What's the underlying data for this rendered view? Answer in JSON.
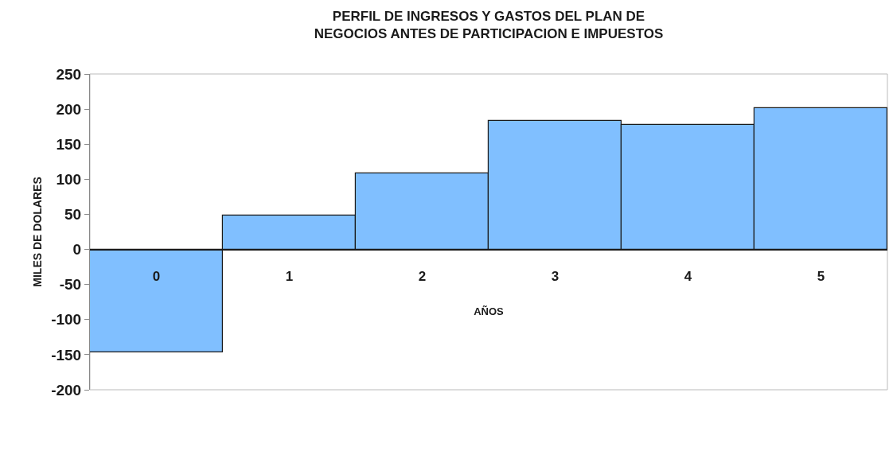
{
  "chart_data": {
    "type": "bar",
    "title": "PERFIL DE INGRESOS Y GASTOS DEL PLAN DE\nNEGOCIOS ANTES DE PARTICIPACION E IMPUESTOS",
    "xlabel": "AÑOS",
    "ylabel": "MILES DE DOLARES",
    "categories": [
      "0",
      "1",
      "2",
      "3",
      "4",
      "5"
    ],
    "values": [
      -147,
      48,
      108,
      183,
      177,
      201
    ],
    "color": "#80bfff",
    "ylim": [
      -200,
      250
    ],
    "yticks": [
      -200,
      -150,
      -100,
      -50,
      0,
      50,
      100,
      150,
      200,
      250
    ],
    "grid": false,
    "legend": false
  }
}
